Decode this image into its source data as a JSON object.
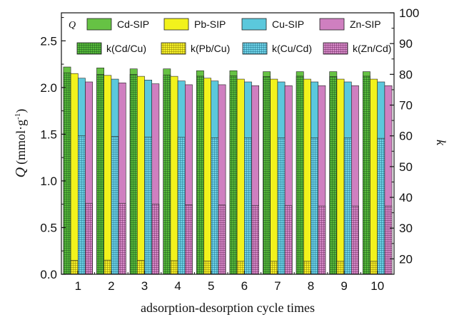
{
  "chart_data": {
    "type": "bar",
    "xlabel": "adsorption-desorption cycle times",
    "ylabel_left": "Q (mmol·g⁻¹)",
    "ylabel_left_symbol": "Q",
    "ylabel_left_unit": "(mmol·g",
    "ylabel_left_sup": "-1",
    "ylabel_left_close": ")",
    "ylabel_right": "k",
    "ylim_left": [
      0.0,
      2.8
    ],
    "ylim_right": [
      15,
      100
    ],
    "yticks_left": [
      "0.0",
      "0.5",
      "1.0",
      "1.5",
      "2.0",
      "2.5"
    ],
    "yticks_right": [
      "20",
      "30",
      "40",
      "50",
      "60",
      "70",
      "80",
      "90",
      "100"
    ],
    "categories": [
      "1",
      "2",
      "3",
      "4",
      "5",
      "6",
      "7",
      "8",
      "9",
      "10"
    ],
    "legend_q_label": "Q",
    "series": [
      {
        "name": "Cd-SIP",
        "axis": "left",
        "color": "#66c244",
        "values": [
          2.22,
          2.21,
          2.2,
          2.2,
          2.18,
          2.18,
          2.17,
          2.17,
          2.17,
          2.17
        ]
      },
      {
        "name": "Pb-SIP",
        "axis": "left",
        "color": "#f2f21c",
        "values": [
          2.15,
          2.13,
          2.12,
          2.12,
          2.1,
          2.09,
          2.09,
          2.09,
          2.09,
          2.09
        ]
      },
      {
        "name": "Cu-SIP",
        "axis": "left",
        "color": "#5bc8dc",
        "values": [
          2.1,
          2.09,
          2.08,
          2.07,
          2.07,
          2.06,
          2.06,
          2.06,
          2.06,
          2.06
        ]
      },
      {
        "name": "Zn-SIP",
        "axis": "left",
        "color": "#cf7fc0",
        "values": [
          2.06,
          2.05,
          2.04,
          2.03,
          2.03,
          2.02,
          2.02,
          2.02,
          2.02,
          2.02
        ]
      },
      {
        "name": "k(Cd/Cu)",
        "axis": "right",
        "color": "#2f8c2f",
        "values": [
          80.5,
          80.0,
          80.0,
          79.8,
          79.4,
          79.5,
          79.3,
          79.4,
          79.3,
          79.4
        ]
      },
      {
        "name": "k(Pb/Cu)",
        "axis": "right",
        "color": "#c8b400",
        "values": [
          19.5,
          19.6,
          19.5,
          19.4,
          19.3,
          19.2,
          19.2,
          19.2,
          19.2,
          19.2
        ]
      },
      {
        "name": "k(Cu/Cd)",
        "axis": "right",
        "color": "#2a8fb0",
        "values": [
          60.0,
          59.8,
          59.6,
          59.5,
          59.4,
          59.4,
          59.3,
          59.3,
          59.3,
          59.2
        ]
      },
      {
        "name": "k(Zn/Cd)",
        "axis": "right",
        "color": "#9a3c8c",
        "values": [
          38.0,
          38.0,
          37.8,
          37.6,
          37.5,
          37.3,
          37.3,
          37.2,
          37.2,
          37.2
        ]
      }
    ]
  }
}
